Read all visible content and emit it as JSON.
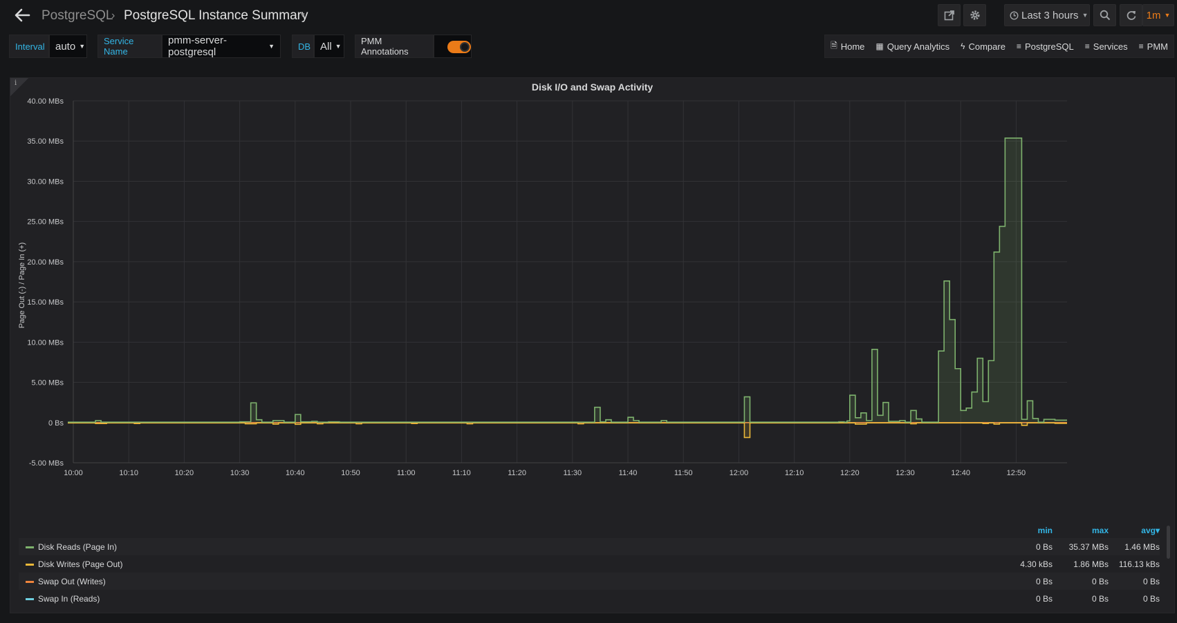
{
  "header": {
    "parent": "PostgreSQL",
    "separator": "›",
    "title": "PostgreSQL Instance Summary",
    "title_caret": "▾",
    "time_range": "Last 3 hours",
    "refresh": "1m"
  },
  "variables": {
    "interval": {
      "label": "Interval",
      "value": "auto"
    },
    "service": {
      "label": "Service Name",
      "value": "pmm-server-postgresql"
    },
    "db": {
      "label": "DB",
      "value": "All"
    },
    "annotations": {
      "label": "PMM Annotations",
      "enabled": true
    }
  },
  "links": [
    {
      "icon": "doc-icon",
      "glyph": "🗎",
      "label": "Home"
    },
    {
      "icon": "grid-icon",
      "glyph": "▦",
      "label": "Query Analytics"
    },
    {
      "icon": "bolt-icon",
      "glyph": "ϟ",
      "label": "Compare"
    },
    {
      "icon": "bars-icon",
      "glyph": "≡",
      "label": "PostgreSQL"
    },
    {
      "icon": "bars-icon",
      "glyph": "≡",
      "label": "Services"
    },
    {
      "icon": "bars-icon",
      "glyph": "≡",
      "label": "PMM"
    }
  ],
  "panel": {
    "info_glyph": "i",
    "title": "Disk I/O and Swap Activity"
  },
  "legend": {
    "headers": {
      "min": "min",
      "max": "max",
      "avg": "avg▾"
    },
    "rows": [
      {
        "name": "Disk Reads (Page In)",
        "color": "#7eb26d",
        "min": "0 Bs",
        "max": "35.37 MBs",
        "avg": "1.46 MBs"
      },
      {
        "name": "Disk Writes (Page Out)",
        "color": "#eab839",
        "min": "4.30 kBs",
        "max": "1.86 MBs",
        "avg": "116.13 kBs"
      },
      {
        "name": "Swap Out (Writes)",
        "color": "#ef843c",
        "min": "0 Bs",
        "max": "0 Bs",
        "avg": "0 Bs"
      },
      {
        "name": "Swap In (Reads)",
        "color": "#6ed0e0",
        "min": "0 Bs",
        "max": "0 Bs",
        "avg": "0 Bs"
      }
    ]
  },
  "chart_data": {
    "type": "area",
    "title": "Disk I/O and Swap Activity",
    "ylabel": "Page Out (-) / Page In (+)",
    "ylim": [
      -5,
      40
    ],
    "y_ticks": [
      "-5.00 MBs",
      "0 Bs",
      "5.00 MBs",
      "10.00 MBs",
      "15.00 MBs",
      "20.00 MBs",
      "25.00 MBs",
      "30.00 MBs",
      "35.00 MBs",
      "40.00 MBs"
    ],
    "x_ticks": [
      "10:00",
      "10:10",
      "10:20",
      "10:30",
      "10:40",
      "10:50",
      "11:00",
      "11:10",
      "11:20",
      "11:30",
      "11:40",
      "11:50",
      "12:00",
      "12:10",
      "12:20",
      "12:30",
      "12:40",
      "12:50"
    ],
    "x_start_minutes": 600,
    "grid": true,
    "series": [
      {
        "name": "Disk Reads (Page In)",
        "color": "#7eb26d",
        "step": true,
        "points": [
          [
            599,
            0.05
          ],
          [
            604,
            0.25
          ],
          [
            605,
            0.05
          ],
          [
            630,
            0.1
          ],
          [
            632,
            2.45
          ],
          [
            633,
            0.35
          ],
          [
            634,
            0.05
          ],
          [
            636,
            0.25
          ],
          [
            638,
            0.05
          ],
          [
            640,
            1.0
          ],
          [
            641,
            0.1
          ],
          [
            643,
            0.15
          ],
          [
            644,
            0.05
          ],
          [
            646,
            0.1
          ],
          [
            648,
            0.05
          ],
          [
            694,
            1.9
          ],
          [
            695,
            0.1
          ],
          [
            696,
            0.35
          ],
          [
            697,
            0.05
          ],
          [
            700,
            0.65
          ],
          [
            701,
            0.25
          ],
          [
            702,
            0.05
          ],
          [
            706,
            0.25
          ],
          [
            707,
            0.05
          ],
          [
            721,
            3.2
          ],
          [
            722,
            0.05
          ],
          [
            738,
            0.1
          ],
          [
            739,
            0.05
          ],
          [
            739.5,
            0.2
          ],
          [
            740,
            3.4
          ],
          [
            741,
            0.6
          ],
          [
            742,
            1.2
          ],
          [
            743,
            0.25
          ],
          [
            744,
            9.1
          ],
          [
            745,
            0.9
          ],
          [
            746,
            2.5
          ],
          [
            747,
            0.15
          ],
          [
            749,
            0.25
          ],
          [
            750,
            0.05
          ],
          [
            751,
            1.5
          ],
          [
            752,
            0.45
          ],
          [
            753,
            0.05
          ],
          [
            756,
            8.9
          ],
          [
            757,
            17.6
          ],
          [
            758,
            12.8
          ],
          [
            759,
            6.7
          ],
          [
            760,
            1.5
          ],
          [
            761,
            1.8
          ],
          [
            762,
            3.8
          ],
          [
            763,
            8.0
          ],
          [
            764,
            2.6
          ],
          [
            765,
            7.7
          ],
          [
            766,
            21.2
          ],
          [
            767,
            24.4
          ],
          [
            768,
            35.37
          ],
          [
            771,
            0.4
          ],
          [
            772,
            2.7
          ],
          [
            773,
            0.5
          ],
          [
            774,
            0.05
          ],
          [
            775,
            0.4
          ],
          [
            777,
            0.3
          ]
        ]
      },
      {
        "name": "Disk Writes (Page Out)",
        "color": "#eab839",
        "step": true,
        "points": [
          [
            599,
            -0.05
          ],
          [
            604,
            -0.12
          ],
          [
            606,
            -0.05
          ],
          [
            611,
            -0.12
          ],
          [
            612,
            -0.05
          ],
          [
            631,
            -0.15
          ],
          [
            633,
            -0.05
          ],
          [
            636,
            -0.2
          ],
          [
            637,
            -0.05
          ],
          [
            640,
            -0.22
          ],
          [
            641,
            -0.05
          ],
          [
            644,
            -0.15
          ],
          [
            645,
            -0.05
          ],
          [
            651,
            -0.15
          ],
          [
            652,
            -0.05
          ],
          [
            661,
            -0.12
          ],
          [
            662,
            -0.05
          ],
          [
            671,
            -0.15
          ],
          [
            672,
            -0.05
          ],
          [
            691,
            -0.15
          ],
          [
            692,
            -0.05
          ],
          [
            721,
            -1.86
          ],
          [
            722,
            -0.05
          ],
          [
            741,
            -0.2
          ],
          [
            743,
            -0.05
          ],
          [
            751,
            -0.15
          ],
          [
            752,
            -0.05
          ],
          [
            764,
            -0.12
          ],
          [
            765,
            -0.05
          ],
          [
            766,
            -0.2
          ],
          [
            767,
            -0.05
          ],
          [
            771,
            -0.35
          ],
          [
            772,
            -0.05
          ],
          [
            777,
            -0.1
          ]
        ]
      },
      {
        "name": "Swap Out (Writes)",
        "color": "#ef843c",
        "step": true,
        "points": [
          [
            599,
            0
          ],
          [
            777,
            0
          ]
        ]
      },
      {
        "name": "Swap In (Reads)",
        "color": "#6ed0e0",
        "step": true,
        "points": [
          [
            599,
            0
          ],
          [
            777,
            0
          ]
        ]
      }
    ]
  }
}
